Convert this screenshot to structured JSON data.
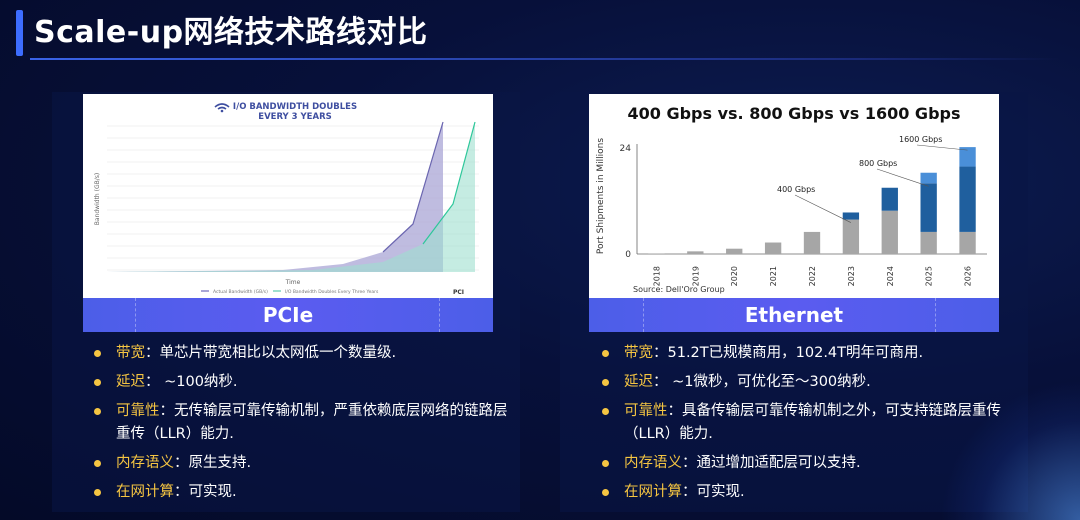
{
  "slide": {
    "title": "Scale-up网络技术路线对比"
  },
  "left": {
    "label": "PCIe",
    "chart": {
      "title_line1": "I/O BANDWIDTH DOUBLES",
      "title_line2": "EVERY 3 YEARS",
      "ylabel": "Bandwidth (GB/s)",
      "xlabel": "Time",
      "legend_a": "Actual Bandwidth (GB/s)",
      "legend_b": "I/O Bandwidth Doubles Every Three Years",
      "logo": "PCI"
    },
    "bullets": [
      {
        "key": "带宽",
        "sep": "：",
        "text": "单芯片带宽相比以太网低一个数量级."
      },
      {
        "key": "延迟",
        "sep": "：",
        "text": " ~100纳秒."
      },
      {
        "key": "可靠性",
        "sep": "：",
        "text": "无传输层可靠传输机制，严重依赖底层网络的链路层重传（LLR）能力."
      },
      {
        "key": "内存语义",
        "sep": "：",
        "text": "原生支持."
      },
      {
        "key": "在网计算",
        "sep": "：",
        "text": "可实现."
      }
    ]
  },
  "right": {
    "label": "Ethernet",
    "bullets": [
      {
        "key": "带宽",
        "sep": "：",
        "text": "51.2T已规模商用，102.4T明年可商用."
      },
      {
        "key": "延迟",
        "sep": "：",
        "text": " ~1微秒，可优化至～300纳秒."
      },
      {
        "key": "可靠性",
        "sep": "：",
        "text": "具备传输层可靠传输机制之外，可支持链路层重传（LLR）能力."
      },
      {
        "key": "内存语义",
        "sep": "：",
        "text": "通过增加适配层可以支持."
      },
      {
        "key": "在网计算",
        "sep": "：",
        "text": "可实现."
      }
    ]
  },
  "chart_data": {
    "type": "bar",
    "title": "400 Gbps vs. 800 Gbps vs 1600 Gbps",
    "ylabel": "Port Shipments in Millions",
    "source": "Source: Dell'Oro Group",
    "categories": [
      "2018",
      "2019",
      "2020",
      "2021",
      "2022",
      "2023",
      "2024",
      "2025",
      "2026"
    ],
    "ylim": [
      0,
      24
    ],
    "yticks": [
      0,
      24
    ],
    "stacked": true,
    "series": [
      {
        "name": "400 Gbps",
        "color": "#a6a6a6",
        "values": [
          0.1,
          0.6,
          1.2,
          2.6,
          5.0,
          7.8,
          9.8,
          5.0,
          5.0
        ]
      },
      {
        "name": "800 Gbps",
        "color": "#1f5f9e",
        "values": [
          0,
          0,
          0,
          0,
          0,
          1.6,
          5.2,
          11.0,
          14.8
        ]
      },
      {
        "name": "1600 Gbps",
        "color": "#4a8fd8",
        "values": [
          0,
          0,
          0,
          0,
          0,
          0,
          0,
          2.4,
          4.4
        ]
      }
    ]
  }
}
